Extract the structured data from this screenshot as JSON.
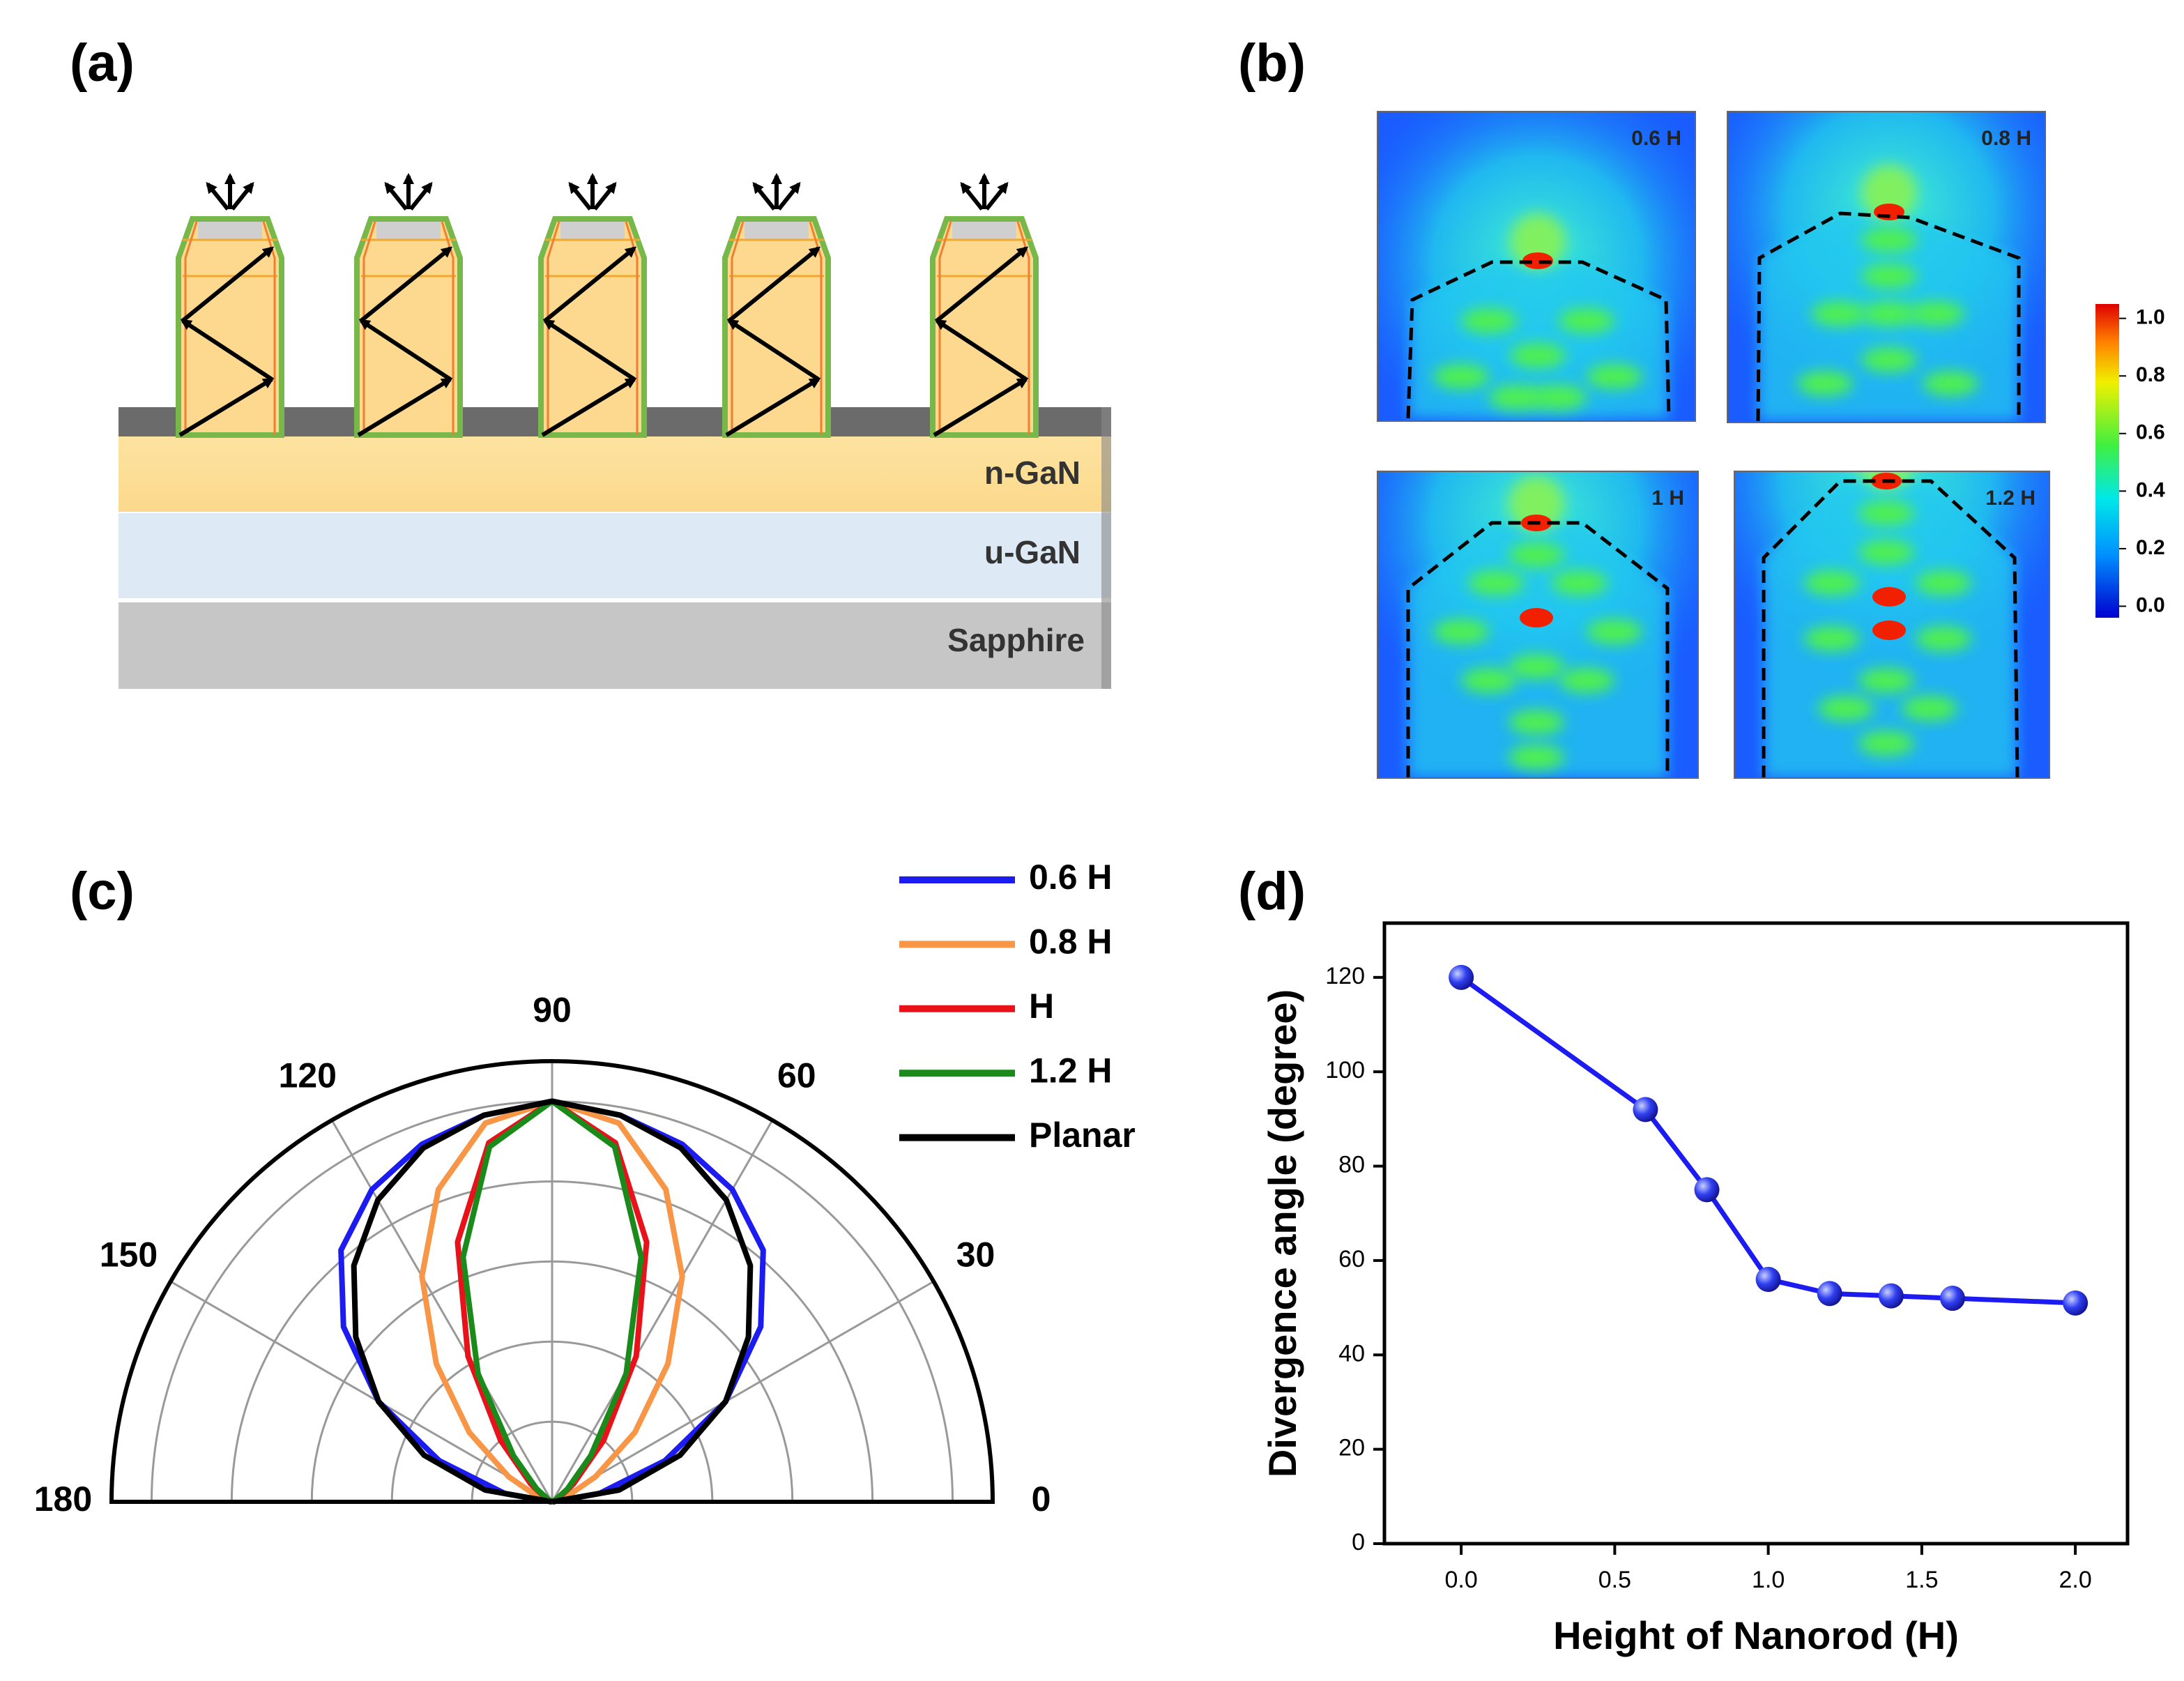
{
  "panel_labels": [
    "(a)",
    "(b)",
    "(c)",
    "(d)"
  ],
  "structure": {
    "layers": [
      "n-GaN",
      "u-GaN",
      "Sapphire"
    ]
  },
  "field_maps": {
    "labels": [
      "0.6 H",
      "0.8 H",
      "1 H",
      "1.2 H"
    ],
    "colorbar": {
      "lim": [
        -0.04,
        1.05
      ],
      "ticks": [
        {
          "value": 1,
          "label": "1.0"
        },
        0.8,
        0.6,
        0.4,
        0.2,
        {
          "value": 0,
          "label": "0.0"
        }
      ]
    }
  },
  "chart_data": [
    {
      "type": "polar",
      "thetalim": [
        0,
        180
      ],
      "thetaticks": [
        0,
        30,
        60,
        90,
        120,
        150,
        180
      ],
      "rlim": [
        0,
        1.1
      ],
      "rticks": [
        0.2,
        0.4,
        0.6,
        0.8,
        1.0
      ],
      "theta": [
        0,
        10,
        20,
        30,
        40,
        50,
        60,
        70,
        80,
        90,
        100,
        110,
        120,
        130,
        140,
        150,
        160,
        170,
        180
      ],
      "series": [
        {
          "name": "0.6 H",
          "color": "#1c1cf0",
          "values": [
            0,
            0.12,
            0.3,
            0.5,
            0.68,
            0.82,
            0.9,
            0.95,
            0.98,
            1,
            0.98,
            0.95,
            0.9,
            0.82,
            0.68,
            0.5,
            0.3,
            0.12,
            0
          ]
        },
        {
          "name": "0.8 H",
          "color": "#f79646",
          "values": [
            0,
            0.005,
            0.04,
            0.125,
            0.27,
            0.45,
            0.65,
            0.83,
            0.96,
            1,
            0.96,
            0.83,
            0.65,
            0.45,
            0.27,
            0.125,
            0.04,
            0.005,
            0
          ]
        },
        {
          "name": "H",
          "color": "#e8121a",
          "values": [
            0,
            0,
            0,
            0.02,
            0.07,
            0.2,
            0.42,
            0.69,
            0.91,
            1,
            0.91,
            0.69,
            0.42,
            0.2,
            0.07,
            0.02,
            0,
            0,
            0
          ]
        },
        {
          "name": "1.2 H",
          "color": "#1a8a1a",
          "values": [
            0,
            0,
            0,
            0.01,
            0.05,
            0.15,
            0.37,
            0.65,
            0.9,
            1,
            0.9,
            0.65,
            0.37,
            0.15,
            0.05,
            0.01,
            0,
            0,
            0
          ]
        },
        {
          "name": "Planar",
          "color": "#000000",
          "values": [
            0,
            0.17,
            0.34,
            0.5,
            0.64,
            0.77,
            0.87,
            0.94,
            0.98,
            1,
            0.98,
            0.94,
            0.87,
            0.77,
            0.64,
            0.5,
            0.34,
            0.17,
            0
          ]
        }
      ]
    },
    {
      "type": "line",
      "x": [
        0,
        0.6,
        0.8,
        1.0,
        1.2,
        1.4,
        1.6,
        2.0
      ],
      "values": [
        120,
        92,
        75,
        56,
        53,
        52.5,
        52,
        51
      ],
      "color": "#1c1cf0",
      "xlabel": "Height of Nanorod (H)",
      "ylabel": "Divergence angle (degree)",
      "xlim": [
        -0.25,
        2.17
      ],
      "xticks": [
        {
          "value": 0,
          "label": "0.0"
        },
        0.5,
        {
          "value": 1,
          "label": "1.0"
        },
        1.5,
        {
          "value": 2,
          "label": "2.0"
        }
      ],
      "ylim": [
        0,
        131.5
      ],
      "yticks": [
        0,
        20,
        40,
        60,
        80,
        100,
        120
      ]
    }
  ]
}
